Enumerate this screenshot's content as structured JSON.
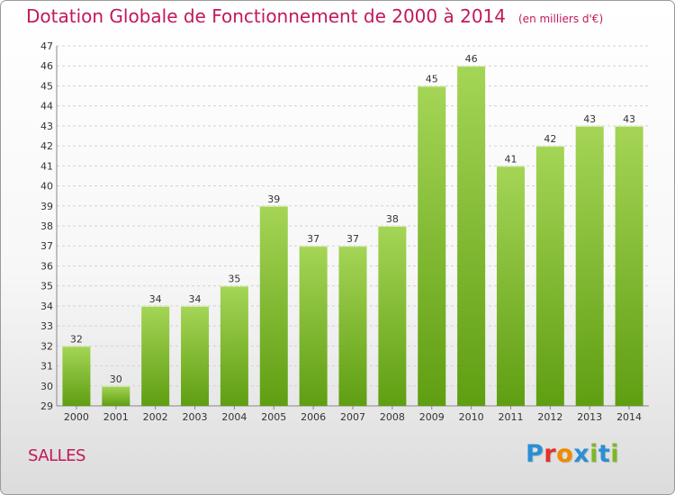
{
  "title": "Dotation Globale de Fonctionnement de 2000 à 2014",
  "unit": "(en milliers d'€)",
  "commune": "SALLES",
  "logo": {
    "text": "Proxiti",
    "colors": [
      "#2a8fd6",
      "#e4312b",
      "#f08a00",
      "#2a8fd6",
      "#7db728",
      "#2a8fd6",
      "#7db728"
    ]
  },
  "colors": {
    "bar_top": "#a5d556",
    "bar_bottom": "#5f9e12",
    "accent": "#c2185b"
  },
  "chart_data": {
    "type": "bar",
    "categories": [
      "2000",
      "2001",
      "2002",
      "2003",
      "2004",
      "2005",
      "2006",
      "2007",
      "2008",
      "2009",
      "2010",
      "2011",
      "2012",
      "2013",
      "2014"
    ],
    "values": [
      32,
      30,
      34,
      34,
      35,
      39,
      37,
      37,
      38,
      45,
      46,
      41,
      42,
      43,
      43
    ],
    "ylim": [
      29,
      47
    ],
    "yticks": [
      29,
      30,
      31,
      32,
      33,
      34,
      35,
      36,
      37,
      38,
      39,
      40,
      41,
      42,
      43,
      44,
      45,
      46,
      47
    ],
    "grid": true
  }
}
